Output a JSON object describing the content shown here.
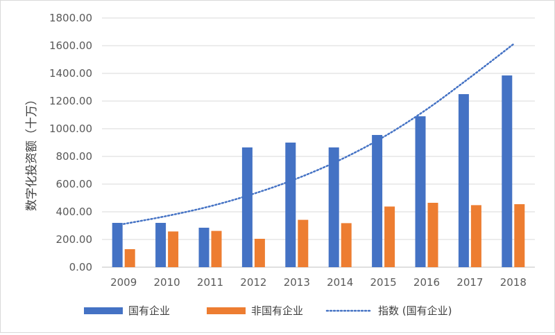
{
  "chart_data": {
    "type": "bar",
    "title": "",
    "xlabel": "",
    "ylabel": "数字化投资额（十万）",
    "ylim": [
      0,
      1800
    ],
    "y_ticks": [
      "0.00",
      "200.00",
      "400.00",
      "600.00",
      "800.00",
      "1000.00",
      "1200.00",
      "1400.00",
      "1600.00",
      "1800.00"
    ],
    "categories": [
      "2009",
      "2010",
      "2011",
      "2012",
      "2013",
      "2014",
      "2015",
      "2016",
      "2017",
      "2018"
    ],
    "series": [
      {
        "name": "国有企业",
        "type": "bar",
        "color": "#4472c4",
        "values": [
          320,
          320,
          285,
          865,
          900,
          865,
          955,
          1090,
          1250,
          1385
        ]
      },
      {
        "name": "非国有企业",
        "type": "bar",
        "color": "#ed7d31",
        "values": [
          130,
          258,
          262,
          205,
          342,
          318,
          438,
          465,
          448,
          455
        ]
      },
      {
        "name": "指数 (国有企业)",
        "type": "line",
        "style": "dotted",
        "color": "#4472c4",
        "values": [
          312,
          370,
          440,
          530,
          640,
          775,
          940,
          1140,
          1370,
          1610
        ]
      }
    ],
    "grid": true,
    "legend": "bottom"
  }
}
